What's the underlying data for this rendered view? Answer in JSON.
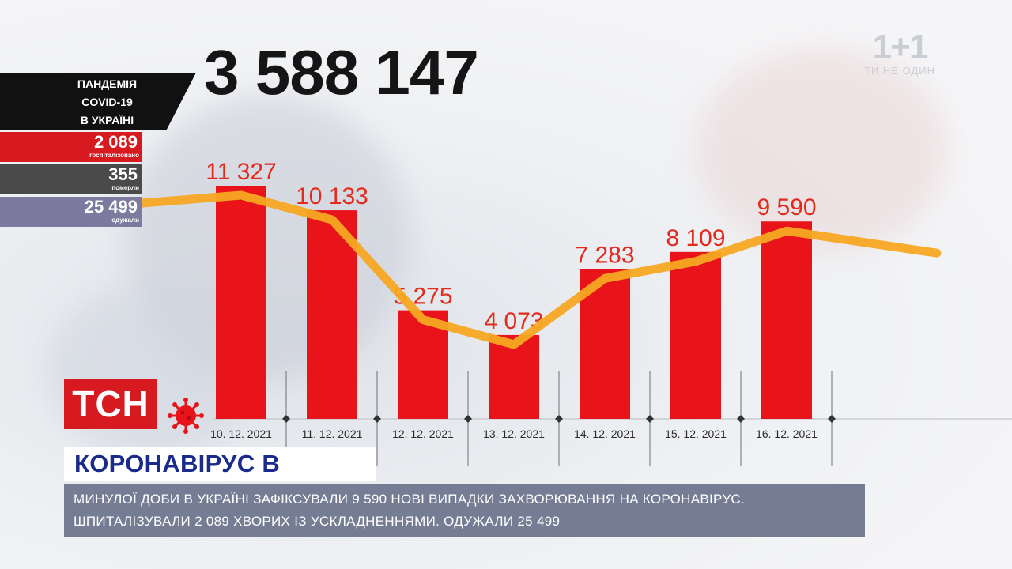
{
  "total_cases": "3 588 147",
  "sidebar": {
    "title_lines": [
      "ПАНДЕМІЯ",
      "COVID-19",
      "В УКРАЇНІ"
    ],
    "stats": [
      {
        "value": "2 089",
        "label": "госпіталізовано",
        "color": "#d71920"
      },
      {
        "value": "355",
        "label": "померли",
        "color": "#4a4a4a"
      },
      {
        "value": "25 499",
        "label": "одужали",
        "color": "#7c7a9e"
      }
    ]
  },
  "brand": {
    "logo": "1+1",
    "tagline": "ТИ НЕ ОДИН"
  },
  "tsn_logo": "ТСН",
  "headline": "КОРОНАВІРУС В УКРАЇНІ",
  "ticker": "МИНУЛОЇ ДОБИ В УКРАЇНІ ЗАФІКСУВАЛИ 9 590 НОВІ ВИПАДКИ ЗАХВОРЮВАННЯ НА КОРОНАВІРУС. ШПИТАЛІЗУВАЛИ 2 089 ХВОРИХ ІЗ УСКЛАДНЕННЯМИ. ОДУЖАЛИ 25 499",
  "colors": {
    "bar": "#e8141a",
    "line": "#f7a823",
    "label": "#e22a1d"
  },
  "chart_data": {
    "type": "bar",
    "categories": [
      "10. 12. 2021",
      "11. 12. 2021",
      "12. 12. 2021",
      "13. 12. 2021",
      "14. 12. 2021",
      "15. 12. 2021",
      "16. 12. 2021"
    ],
    "values": [
      11327,
      10133,
      5275,
      4073,
      7283,
      8109,
      9590
    ],
    "value_labels": [
      "11 327",
      "10 133",
      "5 275",
      "4 073",
      "7 283",
      "8 109",
      "9 590"
    ],
    "title": "",
    "xlabel": "",
    "ylabel": "",
    "trend_line": true,
    "grid": false
  }
}
